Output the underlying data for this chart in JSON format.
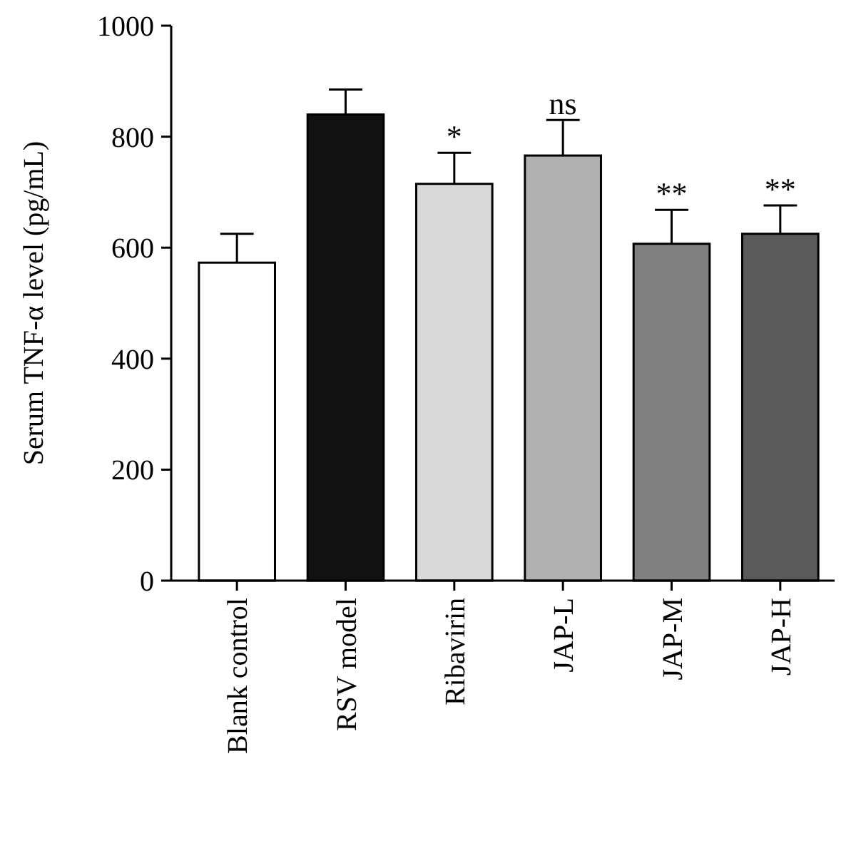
{
  "chart_data": {
    "type": "bar",
    "ylabel": "Serum TNF-α level (pg/mL)",
    "categories": [
      "Blank control",
      "RSV model",
      "Ribavirin",
      "JAP-L",
      "JAP-M",
      "JAP-H"
    ],
    "values": [
      573,
      840,
      715,
      766,
      607,
      625
    ],
    "colors": [
      "#ffffff",
      "#111111",
      "#d9d9d9",
      "#b0b0b0",
      "#808080",
      "#5a5a5a"
    ],
    "errors": [
      52,
      45,
      56,
      64,
      61,
      51
    ],
    "ylim": [
      0,
      1000
    ],
    "yticks": [
      0,
      200,
      400,
      600,
      800,
      1000
    ],
    "grid": false,
    "annotations": [
      {
        "text": "*",
        "x": "Ribavirin",
        "y": 771
      },
      {
        "text": "ns",
        "x": "JAP-L",
        "y": 830
      },
      {
        "text": "**",
        "x": "JAP-M",
        "y": 668
      },
      {
        "text": "**",
        "x": "JAP-H",
        "y": 676
      }
    ]
  }
}
